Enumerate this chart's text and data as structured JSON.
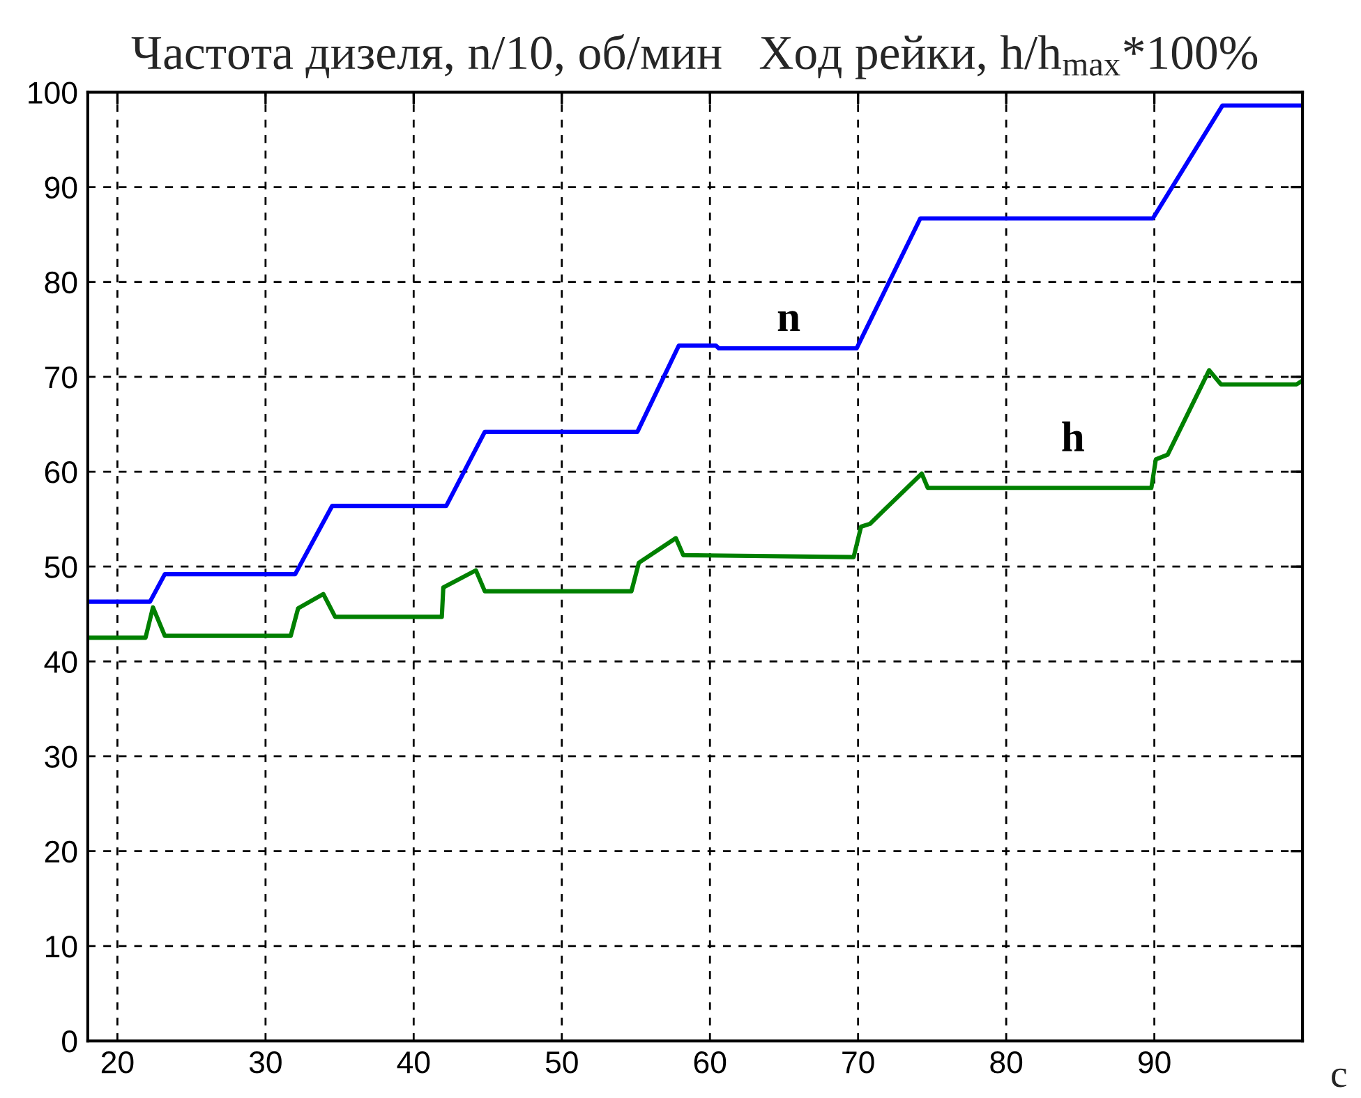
{
  "chart_data": {
    "type": "line",
    "title": "Частота дизеля, n/10, об/мин   Ход рейки, h/h$_{max}$*100%",
    "xlabel": "с",
    "xlim": [
      18,
      100
    ],
    "xticks": [
      20,
      30,
      40,
      50,
      60,
      70,
      80,
      90
    ],
    "ylim": [
      0,
      100
    ],
    "yticks": [
      0,
      10,
      20,
      30,
      40,
      50,
      60,
      70,
      80,
      90,
      100
    ],
    "grid": true,
    "series": [
      {
        "name": "n",
        "color": "#0000ff",
        "x": [
          18,
          22.2,
          23.2,
          32.0,
          34.5,
          42.2,
          44.8,
          55.1,
          57.9,
          60.4,
          60.6,
          69.9,
          74.2,
          89.9,
          94.6,
          100
        ],
        "values": [
          46.3,
          46.3,
          49.2,
          49.2,
          56.4,
          56.4,
          64.2,
          64.2,
          73.3,
          73.3,
          73.0,
          73.0,
          86.7,
          86.7,
          98.6,
          98.6
        ]
      },
      {
        "name": "h",
        "color": "#008000",
        "x": [
          18,
          21.9,
          22.4,
          23.2,
          31.7,
          32.2,
          33.9,
          34.7,
          41.9,
          42.0,
          44.2,
          44.8,
          54.7,
          55.2,
          57.7,
          58.2,
          69.7,
          70.2,
          70.8,
          74.3,
          74.7,
          89.8,
          90.1,
          90.9,
          93.7,
          94.5,
          99.6,
          100
        ],
        "values": [
          42.5,
          42.5,
          45.7,
          42.7,
          42.7,
          45.6,
          47.1,
          44.7,
          44.7,
          47.8,
          49.6,
          47.4,
          47.4,
          50.4,
          53.0,
          51.2,
          51.0,
          54.2,
          54.5,
          59.8,
          58.3,
          58.3,
          61.3,
          61.8,
          70.7,
          69.2,
          69.2,
          69.6
        ]
      }
    ]
  }
}
